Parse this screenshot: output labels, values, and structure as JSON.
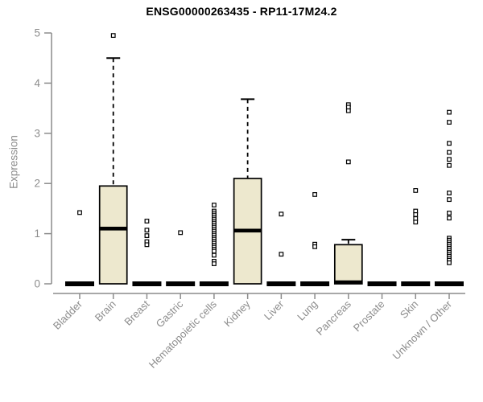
{
  "page": {
    "background": "#ffffff"
  },
  "chart_data": {
    "type": "boxplot",
    "title": "ENSG00000263435 - RP11-17M24.2",
    "ylabel": "Expression",
    "xlabel": "",
    "ylim": [
      0,
      5
    ],
    "yticks": [
      0,
      1,
      2,
      3,
      4,
      5
    ],
    "grid": false,
    "legend": "none",
    "categories": [
      "Bladder",
      "Brain",
      "Breast",
      "Gastric",
      "Hematopoietic cells",
      "Kidney",
      "Liver",
      "Lung",
      "Pancreas",
      "Prostate",
      "Skin",
      "Unknown / Other"
    ],
    "boxes": [
      {
        "category": "Bladder",
        "q1": 0,
        "median": 0,
        "q3": 0,
        "whisker_low": 0,
        "whisker_high": 0,
        "outliers": [
          1.42
        ]
      },
      {
        "category": "Brain",
        "q1": 0,
        "median": 1.1,
        "q3": 1.95,
        "whisker_low": 0,
        "whisker_high": 4.5,
        "outliers": [
          4.95
        ]
      },
      {
        "category": "Breast",
        "q1": 0,
        "median": 0,
        "q3": 0,
        "whisker_low": 0,
        "whisker_high": 0,
        "outliers": [
          1.25,
          1.07,
          0.96,
          0.84,
          0.78
        ]
      },
      {
        "category": "Gastric",
        "q1": 0,
        "median": 0,
        "q3": 0,
        "whisker_low": 0,
        "whisker_high": 0,
        "outliers": [
          1.02
        ]
      },
      {
        "category": "Hematopoietic cells",
        "q1": 0,
        "median": 0,
        "q3": 0,
        "whisker_low": 0,
        "whisker_high": 0,
        "outliers": [
          1.57,
          1.45,
          1.41,
          1.37,
          1.33,
          1.29,
          1.25,
          1.21,
          1.17,
          1.13,
          1.09,
          1.05,
          1.01,
          0.97,
          0.93,
          0.89,
          0.85,
          0.81,
          0.77,
          0.73,
          0.69,
          0.65,
          0.57,
          0.45,
          0.4
        ]
      },
      {
        "category": "Kidney",
        "q1": 0,
        "median": 1.06,
        "q3": 2.1,
        "whisker_low": 0,
        "whisker_high": 3.68,
        "outliers": []
      },
      {
        "category": "Liver",
        "q1": 0,
        "median": 0,
        "q3": 0,
        "whisker_low": 0,
        "whisker_high": 0,
        "outliers": [
          1.39,
          0.59
        ]
      },
      {
        "category": "Lung",
        "q1": 0,
        "median": 0,
        "q3": 0,
        "whisker_low": 0,
        "whisker_high": 0,
        "outliers": [
          1.78,
          0.79,
          0.74
        ]
      },
      {
        "category": "Pancreas",
        "q1": 0,
        "median": 0,
        "q3": 0.78,
        "whisker_low": 0,
        "whisker_high": 0.88,
        "outliers": [
          3.57,
          3.52,
          3.45,
          2.43
        ]
      },
      {
        "category": "Prostate",
        "q1": 0,
        "median": 0,
        "q3": 0,
        "whisker_low": 0,
        "whisker_high": 0,
        "outliers": []
      },
      {
        "category": "Skin",
        "q1": 0,
        "median": 0,
        "q3": 0,
        "whisker_low": 0,
        "whisker_high": 0,
        "outliers": [
          1.86,
          1.45,
          1.38,
          1.3,
          1.23
        ]
      },
      {
        "category": "Unknown / Other",
        "q1": 0,
        "median": 0,
        "q3": 0,
        "whisker_low": 0,
        "whisker_high": 0,
        "outliers": [
          3.42,
          3.22,
          2.8,
          2.62,
          2.48,
          2.36,
          1.81,
          1.68,
          1.41,
          1.31,
          0.91,
          0.87,
          0.83,
          0.79,
          0.75,
          0.71,
          0.67,
          0.63,
          0.59,
          0.55,
          0.51,
          0.47,
          0.42
        ]
      }
    ],
    "colors": {
      "box_fill": "#EDE8CE",
      "box_border": "#000000",
      "median": "#000000",
      "outlier_fill": "#ffffff",
      "axis_line": "#8c8c8c",
      "label_text": "#8c8c8c",
      "title_text": "#000000"
    }
  }
}
